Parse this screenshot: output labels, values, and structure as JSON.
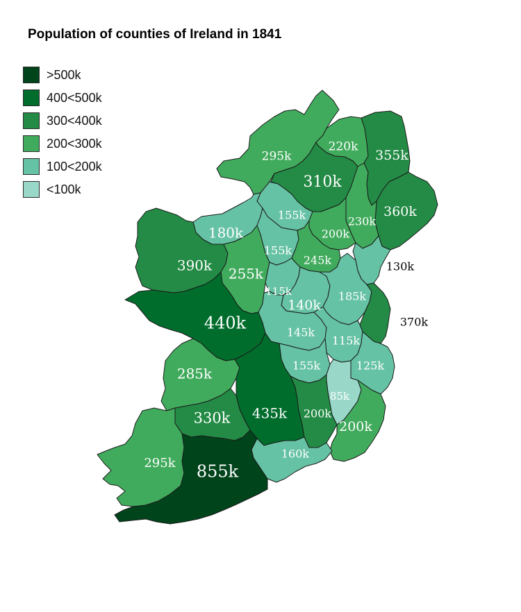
{
  "title": "Population of counties of Ireland in 1841",
  "legend": [
    {
      "label": ">500k",
      "color": "#00441b"
    },
    {
      "label": "400<500k",
      "color": "#006d2c"
    },
    {
      "label": "300<400k",
      "color": "#238b45"
    },
    {
      "label": "200<300k",
      "color": "#41ab5d"
    },
    {
      "label": "100<200k",
      "color": "#66c2a4"
    },
    {
      "label": "<100k",
      "color": "#99d8c9"
    }
  ],
  "labels": {
    "donegal": "295k",
    "derry": "220k",
    "antrim": "355k",
    "tyrone": "310k",
    "down": "360k",
    "fermanagh": "155k",
    "armagh": "230k",
    "monaghan": "200k",
    "sligo": "180k",
    "leitrim": "155k",
    "cavan": "245k",
    "louth": "130k",
    "mayo": "390k",
    "roscommon": "255k",
    "longford": "115k",
    "westmeath": "140k",
    "meath": "185k",
    "dublin": "370k",
    "galway": "440k",
    "offaly": "145k",
    "kildare": "115k",
    "laois": "155k",
    "wicklow": "125k",
    "clare": "285k",
    "carlow": "85k",
    "tipperary": "435k",
    "kilkenny": "200k",
    "wexford": "200k",
    "limerick": "330k",
    "waterford": "160k",
    "kerry": "295k",
    "cork": "855k"
  }
}
